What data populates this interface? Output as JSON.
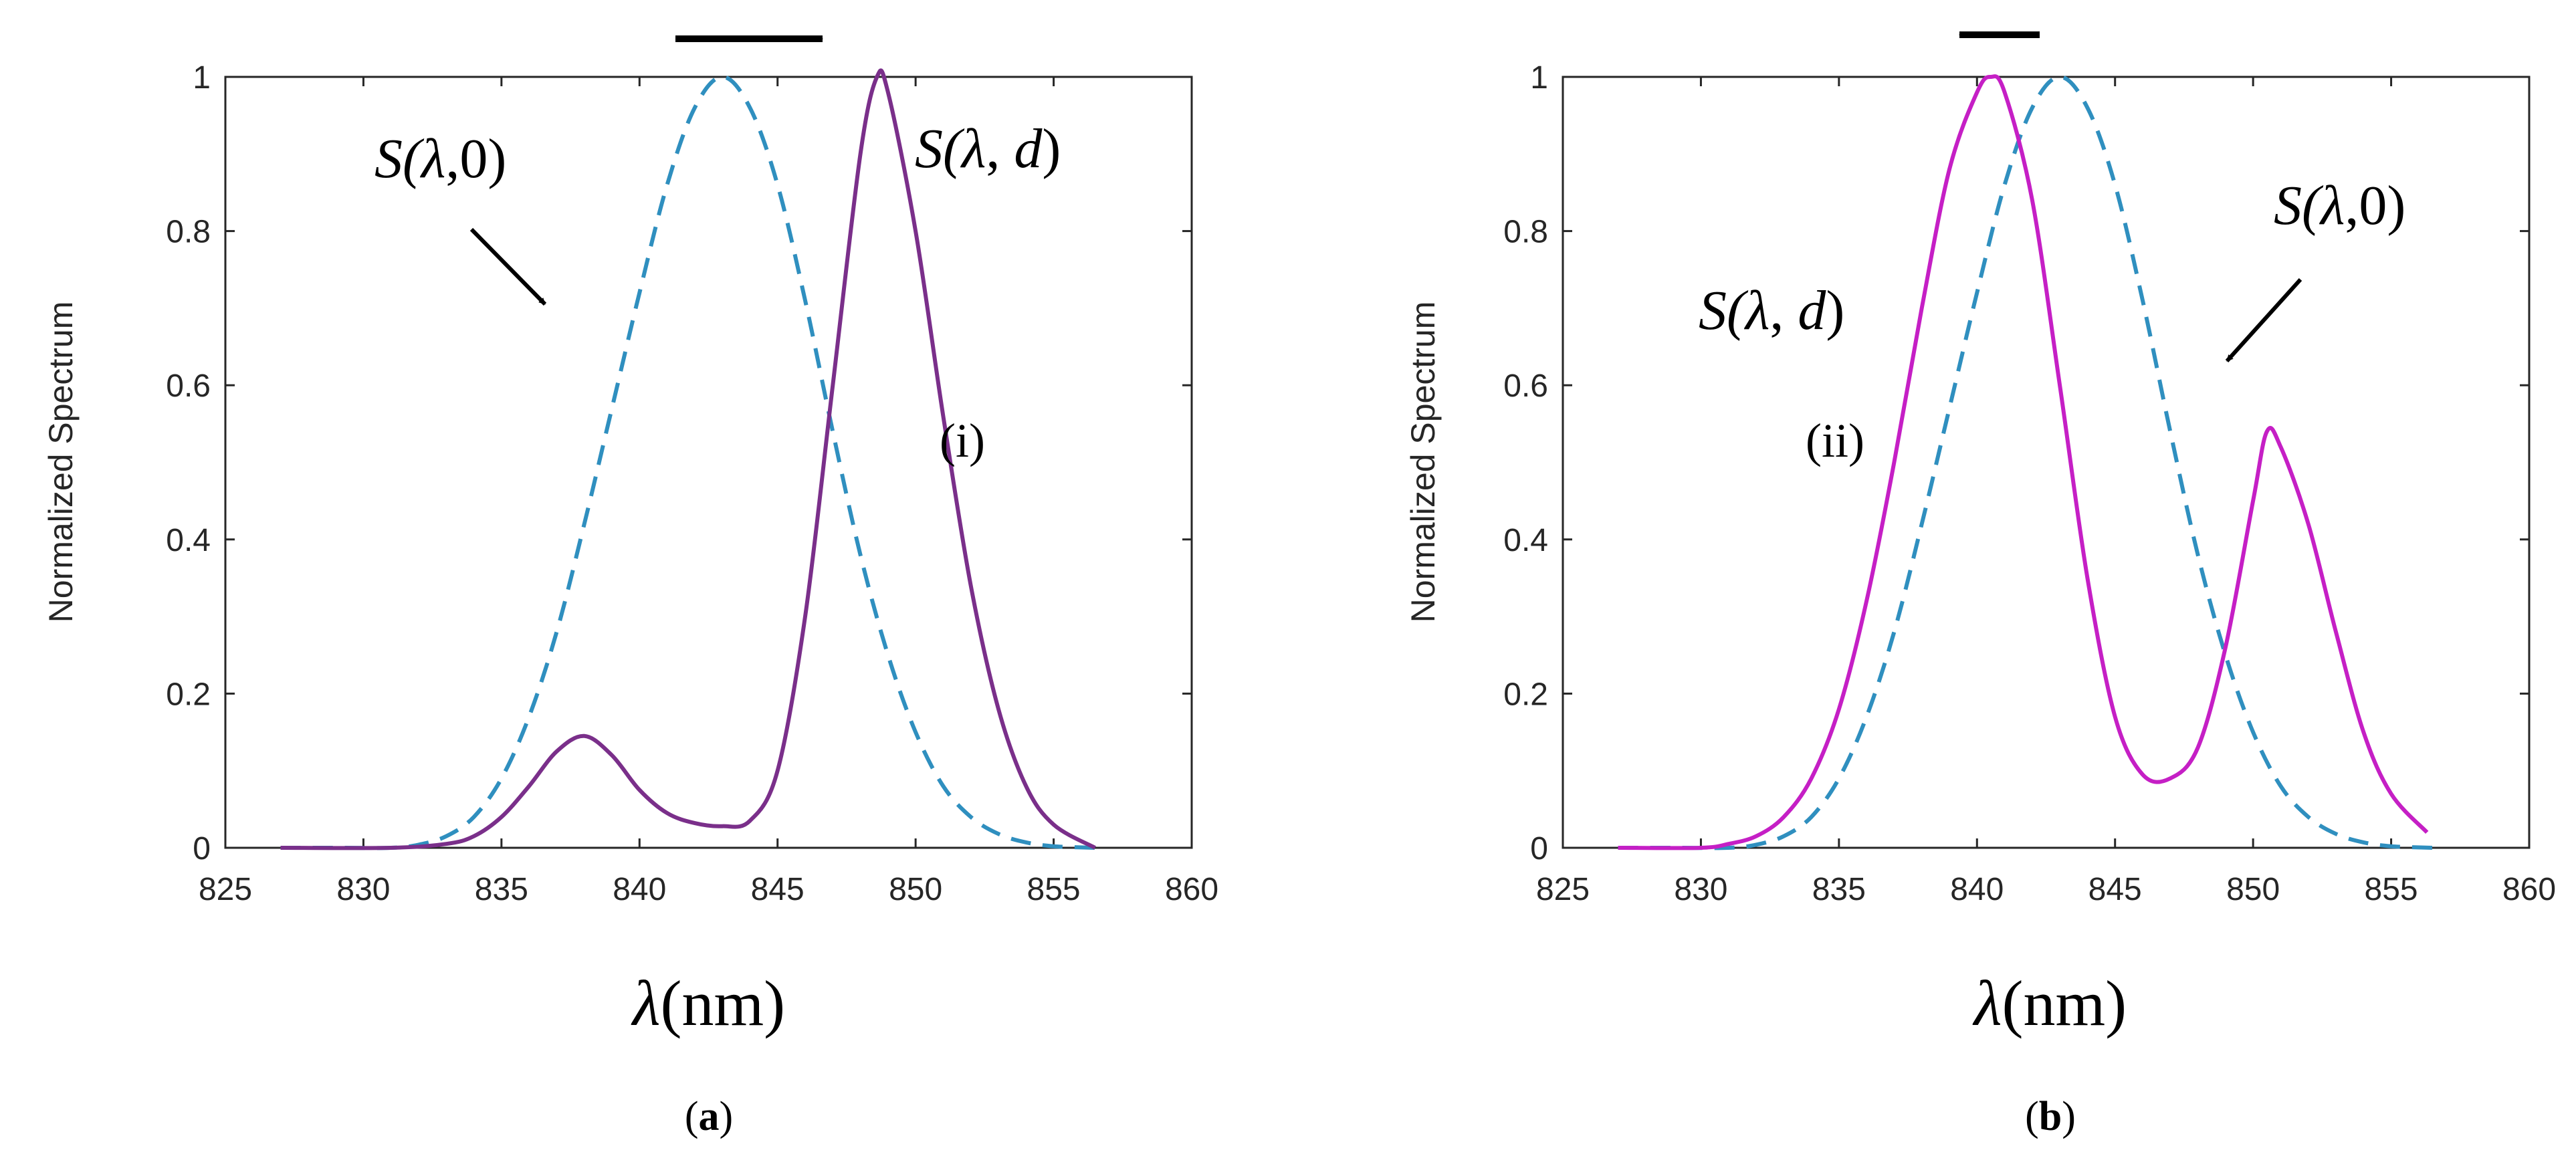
{
  "chart_data": [
    {
      "type": "line",
      "panel_label": "a",
      "ylabel": "Normalized Spectrum",
      "xlabel_symbol": "λ",
      "xlabel_unit": "(nm)",
      "xlim": [
        825,
        860
      ],
      "ylim": [
        0,
        1
      ],
      "xticks": [
        825,
        830,
        835,
        840,
        845,
        850,
        855,
        860
      ],
      "yticks": [
        0,
        0.2,
        0.4,
        0.6,
        0.8,
        1
      ],
      "ytick_labels": [
        "0",
        "0.2",
        "0.4",
        "0.6",
        "0.8",
        "1"
      ],
      "shift_direction": "right",
      "annotations": {
        "ref": {
          "prefix": "S(",
          "var": "λ",
          "suffix": ",0)"
        },
        "shifted": {
          "prefix": "S(",
          "var": "λ",
          "sep": ", ",
          "var2": "d",
          "suffix": ")"
        },
        "roman": "(i)"
      },
      "series": [
        {
          "name": "S(λ,0)",
          "style": "dashed",
          "color": "#2f8fbf",
          "x": [
            827,
            829,
            831,
            832,
            833,
            834,
            835,
            836,
            837,
            838,
            839,
            840,
            841,
            842,
            843,
            844,
            845,
            846,
            847,
            848,
            849,
            850,
            851,
            852,
            853,
            854,
            855,
            856.5
          ],
          "values": [
            0,
            0,
            0,
            0.004,
            0.015,
            0.04,
            0.09,
            0.17,
            0.28,
            0.42,
            0.57,
            0.72,
            0.86,
            0.96,
            1.0,
            0.96,
            0.86,
            0.71,
            0.54,
            0.38,
            0.25,
            0.15,
            0.08,
            0.04,
            0.018,
            0.007,
            0.002,
            0
          ]
        },
        {
          "name": "S(λ,d)",
          "style": "solid",
          "color": "#7a2f8a",
          "x": [
            827,
            831,
            833,
            834,
            835,
            836,
            837,
            838,
            839,
            840,
            841,
            842,
            843,
            844,
            845,
            846,
            847,
            848,
            848.6,
            849,
            850,
            851,
            852,
            853,
            854,
            855,
            856.5
          ],
          "values": [
            0,
            0,
            0.005,
            0.015,
            0.04,
            0.08,
            0.125,
            0.145,
            0.12,
            0.075,
            0.045,
            0.032,
            0.028,
            0.035,
            0.1,
            0.3,
            0.6,
            0.9,
            1.0,
            0.98,
            0.8,
            0.56,
            0.34,
            0.18,
            0.08,
            0.03,
            0
          ]
        }
      ]
    },
    {
      "type": "line",
      "panel_label": "b",
      "ylabel": "Normalized Spectrum",
      "xlabel_symbol": "λ",
      "xlabel_unit": "(nm)",
      "xlim": [
        825,
        860
      ],
      "ylim": [
        0,
        1
      ],
      "xticks": [
        825,
        830,
        835,
        840,
        845,
        850,
        855,
        860
      ],
      "yticks": [
        0,
        0.2,
        0.4,
        0.6,
        0.8,
        1
      ],
      "ytick_labels": [
        "0",
        "0.2",
        "0.4",
        "0.6",
        "0.8",
        "1"
      ],
      "shift_direction": "left",
      "annotations": {
        "ref": {
          "prefix": "S(",
          "var": "λ",
          "suffix": ",0)"
        },
        "shifted": {
          "prefix": "S(",
          "var": "λ",
          "sep": ", ",
          "var2": "d",
          "suffix": ")"
        },
        "roman": "(ii)"
      },
      "series": [
        {
          "name": "S(λ,0)",
          "style": "dashed",
          "color": "#2f8fbf",
          "x": [
            827,
            829,
            831,
            832,
            833,
            834,
            835,
            836,
            837,
            838,
            839,
            840,
            841,
            842,
            843,
            844,
            845,
            846,
            847,
            848,
            849,
            850,
            851,
            852,
            853,
            854,
            855,
            856.5
          ],
          "values": [
            0,
            0,
            0,
            0.004,
            0.015,
            0.04,
            0.09,
            0.17,
            0.28,
            0.42,
            0.57,
            0.72,
            0.86,
            0.96,
            1.0,
            0.96,
            0.86,
            0.71,
            0.54,
            0.38,
            0.25,
            0.15,
            0.08,
            0.04,
            0.018,
            0.007,
            0.002,
            0
          ]
        },
        {
          "name": "S(λ,d)",
          "style": "solid",
          "color": "#c51fc5",
          "x": [
            827,
            830,
            831,
            832,
            833,
            834,
            835,
            836,
            837,
            838,
            839,
            840,
            840.5,
            841,
            842,
            843,
            844,
            845,
            846,
            847,
            848,
            849,
            850,
            850.5,
            851,
            852,
            853,
            854,
            855,
            856.3
          ],
          "values": [
            0,
            0,
            0.005,
            0.015,
            0.04,
            0.09,
            0.18,
            0.32,
            0.5,
            0.7,
            0.88,
            0.98,
            1.0,
            0.98,
            0.84,
            0.6,
            0.35,
            0.17,
            0.095,
            0.09,
            0.13,
            0.26,
            0.45,
            0.54,
            0.52,
            0.42,
            0.28,
            0.15,
            0.07,
            0.02
          ]
        }
      ]
    }
  ]
}
